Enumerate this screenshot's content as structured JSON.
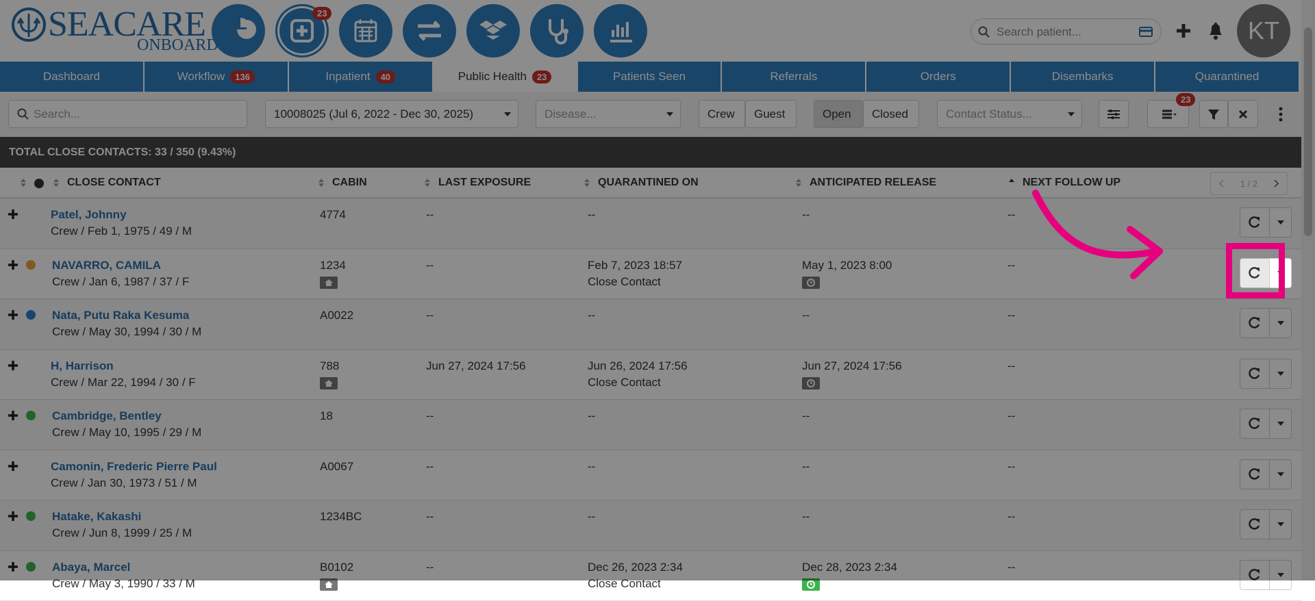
{
  "header": {
    "logo_main": "SEACARE",
    "logo_sub": "ONBOARD",
    "icon_badge": "23",
    "search_placeholder": "Search patient...",
    "avatar": "KT"
  },
  "tabs": [
    {
      "label": "Dashboard"
    },
    {
      "label": "Workflow",
      "badge": "136"
    },
    {
      "label": "Inpatient",
      "badge": "40"
    },
    {
      "label": "Public Health",
      "badge": "23",
      "active": true
    },
    {
      "label": "Patients Seen"
    },
    {
      "label": "Referrals"
    },
    {
      "label": "Orders"
    },
    {
      "label": "Disembarks"
    },
    {
      "label": "Quarantined"
    }
  ],
  "filters": {
    "search_placeholder": "Search...",
    "voyage": "10008025 (Jul 6, 2022 - Dec 30, 2025)",
    "disease_placeholder": "Disease...",
    "crew": "Crew",
    "guest": "Guest",
    "open": "Open",
    "closed": "Closed",
    "contact_status_placeholder": "Contact Status...",
    "list_badge": "23"
  },
  "summary": "TOTAL CLOSE CONTACTS: 33 / 350 (9.43%)",
  "table": {
    "columns": [
      "CLOSE CONTACT",
      "CABIN",
      "LAST EXPOSURE",
      "QUARANTINED ON",
      "ANTICIPATED RELEASE",
      "NEXT FOLLOW UP"
    ],
    "pager": "1 / 2",
    "rows": [
      {
        "name": "Patel, Johnny",
        "details": "Crew / Feb 1, 1975 / 49 / M",
        "cabin": "4774",
        "last_exposure": "--",
        "quarantined_on": "--",
        "release": "--",
        "next_follow_up": "--"
      },
      {
        "name": "NAVARRO, CAMILA",
        "details": "Crew / Jan 6, 1987 / 37 / F",
        "dot": "#f0a040",
        "cabin": "1234",
        "cabin_icon": true,
        "last_exposure": "--",
        "quarantined_on": "Feb 7, 2023 18:57",
        "quarantine_type": "Close Contact",
        "release": "May 1, 2023 8:00",
        "release_icon": "#777",
        "next_follow_up": "--",
        "highlight": true
      },
      {
        "name": "Nata, Putu Raka Kesuma",
        "details": "Crew / May 30, 1994 / 30 / M",
        "dot": "#2a7fd0",
        "cabin": "A0022",
        "last_exposure": "--",
        "quarantined_on": "--",
        "release": "--",
        "next_follow_up": "--"
      },
      {
        "name": "H, Harrison",
        "details": "Crew / Mar 22, 1994 / 30 / F",
        "cabin": "788",
        "cabin_icon": true,
        "last_exposure": "Jun 27, 2024 17:56",
        "quarantined_on": "Jun 26, 2024 17:56",
        "quarantine_type": "Close Contact",
        "release": "Jun 27, 2024 17:56",
        "release_icon": "#777",
        "next_follow_up": "--"
      },
      {
        "name": "Cambridge, Bentley",
        "details": "Crew / May 10, 1995 / 29 / M",
        "dot": "#3cb44b",
        "cabin": "18",
        "last_exposure": "--",
        "quarantined_on": "--",
        "release": "--",
        "next_follow_up": "--"
      },
      {
        "name": "Camonin, Frederic Pierre Paul",
        "details": "Crew / Jan 30, 1973 / 51 / M",
        "cabin": "A0067",
        "last_exposure": "--",
        "quarantined_on": "--",
        "release": "--",
        "next_follow_up": "--"
      },
      {
        "name": "Hatake, Kakashi",
        "details": "Crew / Jun 8, 1999 / 25 / M",
        "dot": "#3cb44b",
        "cabin": "1234BC",
        "last_exposure": "--",
        "quarantined_on": "--",
        "release": "--",
        "next_follow_up": "--"
      },
      {
        "name": "Abaya, Marcel",
        "details": "Crew / May 3, 1990 / 33 / M",
        "dot": "#3cb44b",
        "cabin": "B0102",
        "cabin_icon": true,
        "last_exposure": "--",
        "quarantined_on": "Dec 26, 2023 2:34",
        "quarantine_type": "Close Contact",
        "release": "Dec 28, 2023 2:34",
        "release_icon": "#3cb44b",
        "next_follow_up": "--"
      }
    ]
  }
}
